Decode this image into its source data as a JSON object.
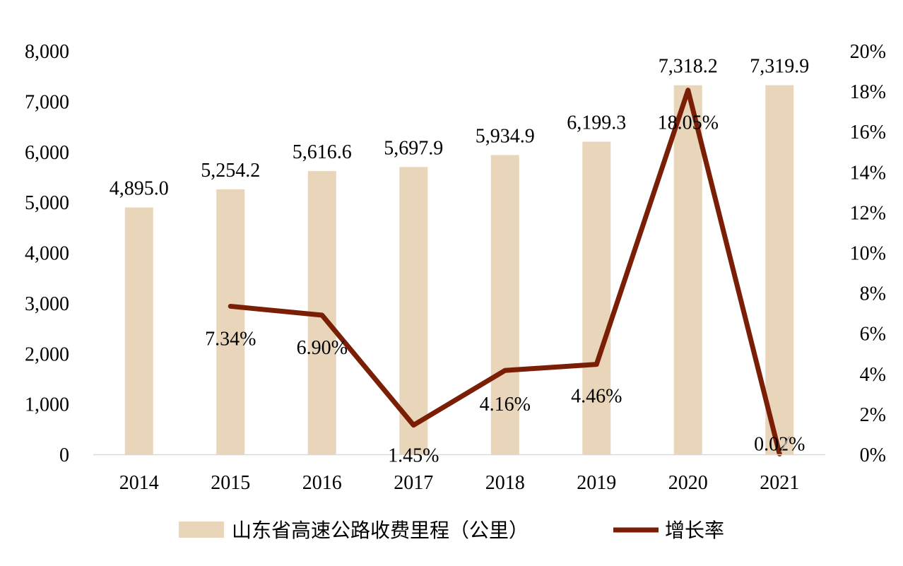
{
  "chart_data": {
    "type": "bar",
    "categories": [
      "2014",
      "2015",
      "2016",
      "2017",
      "2018",
      "2019",
      "2020",
      "2021"
    ],
    "series": [
      {
        "name": "山东省高速公路收费里程（公里）",
        "type": "bar",
        "axis": "left",
        "color": "#E8D5BA",
        "values": [
          4895.0,
          5254.2,
          5616.6,
          5697.9,
          5934.9,
          6199.3,
          7318.2,
          7319.9
        ],
        "labels": [
          "4,895.0",
          "5,254.2",
          "5,616.6",
          "5,697.9",
          "5,934.9",
          "6,199.3",
          "7,318.2",
          "7,319.9"
        ]
      },
      {
        "name": "增长率",
        "type": "line",
        "axis": "right",
        "color": "#7A1E06",
        "values": [
          null,
          7.34,
          6.9,
          1.45,
          4.16,
          4.46,
          18.05,
          0.02
        ],
        "labels": [
          null,
          "7.34%",
          "6.90%",
          "1.45%",
          "4.16%",
          "4.46%",
          "18.05%",
          "0.02%"
        ]
      }
    ],
    "y_left": {
      "ylim": [
        0,
        8000
      ],
      "ticks": [
        0,
        1000,
        2000,
        3000,
        4000,
        5000,
        6000,
        7000,
        8000
      ],
      "tick_labels": [
        "0",
        "1,000",
        "2,000",
        "3,000",
        "4,000",
        "5,000",
        "6,000",
        "7,000",
        "8,000"
      ]
    },
    "y_right": {
      "ylim": [
        0,
        20
      ],
      "ticks": [
        0,
        2,
        4,
        6,
        8,
        10,
        12,
        14,
        16,
        18,
        20
      ],
      "tick_labels": [
        "0%",
        "2%",
        "4%",
        "6%",
        "8%",
        "10%",
        "12%",
        "14%",
        "16%",
        "18%",
        "20%"
      ]
    },
    "grid": false,
    "legend": "bottom",
    "title": "",
    "xlabel": "",
    "ylabel": ""
  }
}
